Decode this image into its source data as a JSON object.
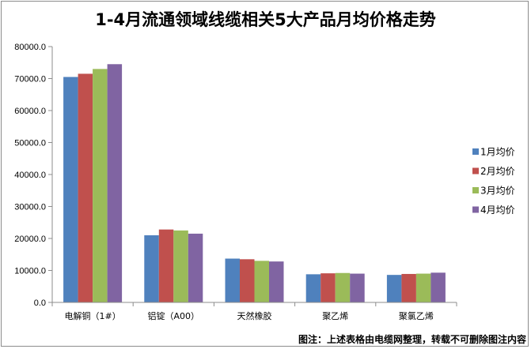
{
  "chart_data": {
    "type": "bar",
    "title": "1-4月流通领域线缆相关5大产品月均价格走势",
    "categories": [
      "电解铜（1#）",
      "铝锭（A00）",
      "天然橡胶",
      "聚乙烯",
      "聚氯乙烯"
    ],
    "series": [
      {
        "name": "1月均价",
        "color": "#4f81bd",
        "values": [
          70500,
          21000,
          13700,
          8800,
          8600
        ]
      },
      {
        "name": "2月均价",
        "color": "#c0504d",
        "values": [
          71500,
          22800,
          13500,
          9100,
          8900
        ]
      },
      {
        "name": "3月均价",
        "color": "#9bbb59",
        "values": [
          73000,
          22500,
          13000,
          9200,
          9000
        ]
      },
      {
        "name": "4月均价",
        "color": "#8064a2",
        "values": [
          74500,
          21500,
          12800,
          9000,
          9300
        ]
      }
    ],
    "ylim": [
      0,
      80000
    ],
    "yticks": [
      0,
      10000,
      20000,
      30000,
      40000,
      50000,
      60000,
      70000,
      80000
    ],
    "ytick_labels": [
      "0.0",
      "10000.0",
      "20000.0",
      "30000.0",
      "40000.0",
      "50000.0",
      "60000.0",
      "70000.0",
      "80000.0"
    ],
    "grid": false,
    "legend_position": "right"
  },
  "footer_note": "图注：上述表格由电缆网整理，转载不可删除图注内容"
}
